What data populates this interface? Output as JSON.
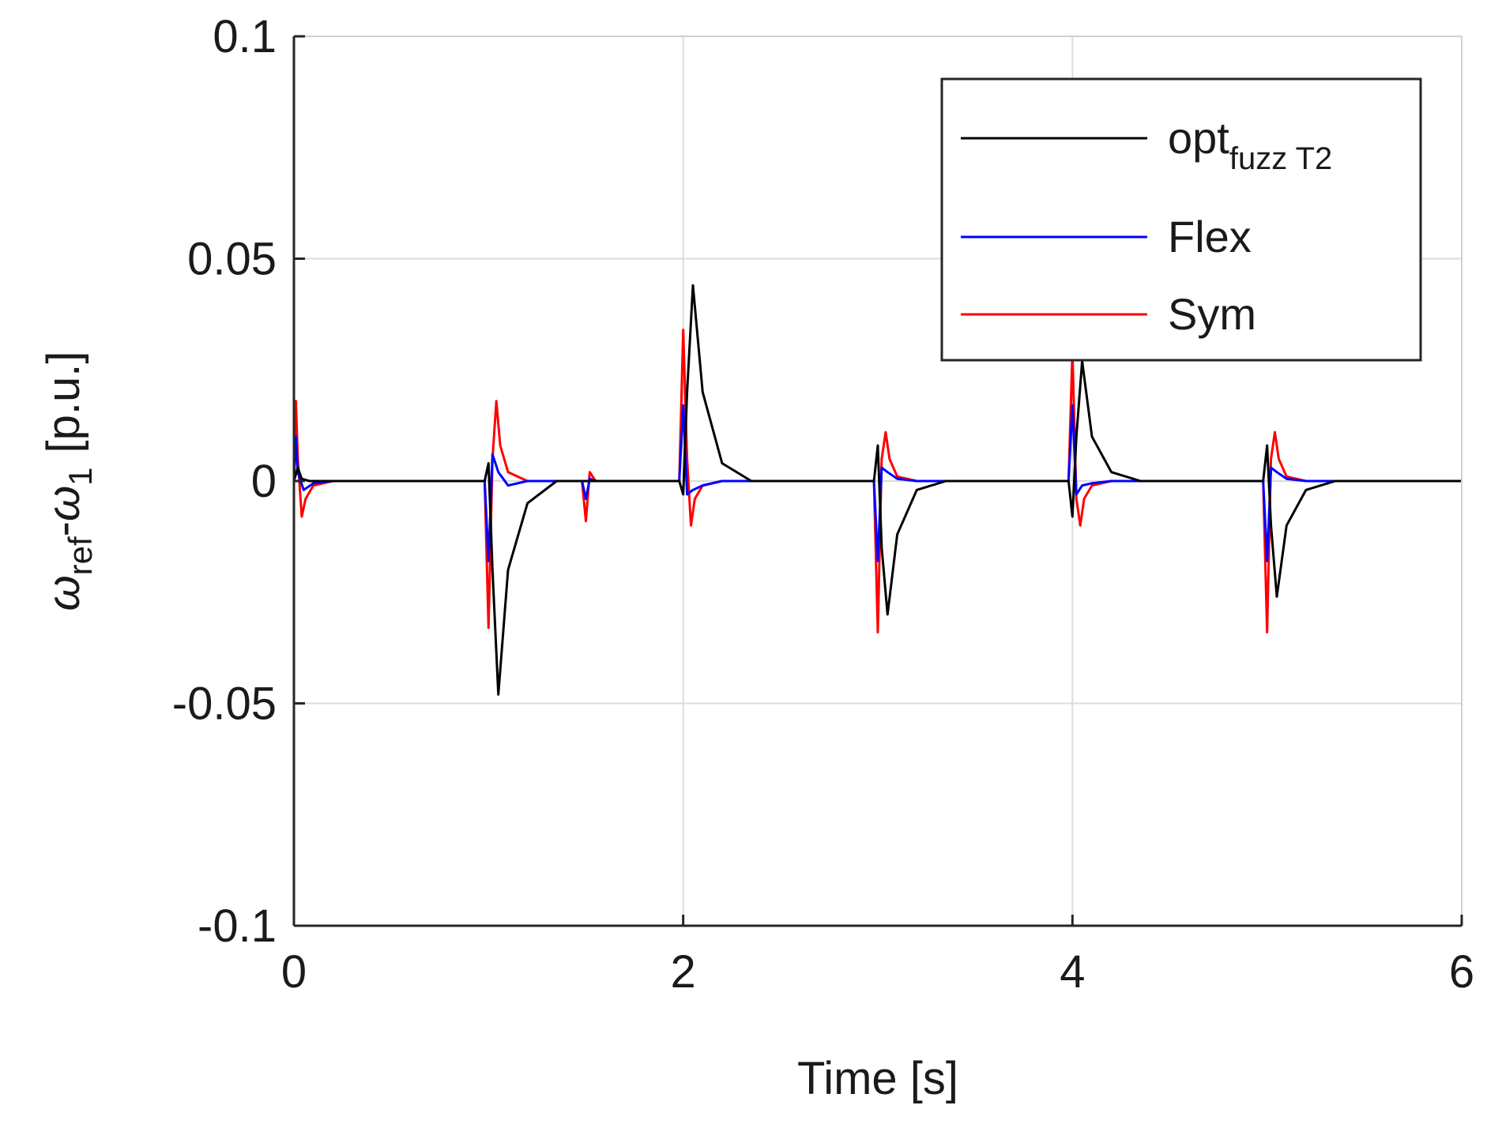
{
  "chart_data": {
    "type": "line",
    "title": "",
    "xlabel": "Time [s]",
    "ylabel": {
      "omega": "ω",
      "ref_sub": "ref",
      "minus": "-",
      "one_sub": "1",
      "unit": "[p.u.]"
    },
    "xlim": [
      0,
      6
    ],
    "ylim": [
      -0.1,
      0.1
    ],
    "grid": true,
    "legend_position": "top-right",
    "x_ticks": [
      0,
      2,
      4,
      6
    ],
    "x_tick_labels": [
      "0",
      "2",
      "4",
      "6"
    ],
    "y_ticks": [
      -0.1,
      -0.05,
      0,
      0.05,
      0.1
    ],
    "y_tick_labels": [
      "-0.1",
      "-0.05",
      "0",
      "0.05",
      "0.1"
    ],
    "series": [
      {
        "name": "opt",
        "name_sub": "fuzz T2",
        "color": "#000000",
        "x": [
          0,
          0.02,
          0.04,
          0.08,
          0.12,
          0.98,
          1.0,
          1.02,
          1.05,
          1.1,
          1.2,
          1.35,
          1.5,
          1.98,
          2.0,
          2.02,
          2.05,
          2.1,
          2.2,
          2.35,
          2.98,
          3.0,
          3.02,
          3.05,
          3.1,
          3.2,
          3.35,
          3.98,
          4.0,
          4.02,
          4.05,
          4.1,
          4.2,
          4.35,
          4.98,
          5.0,
          5.02,
          5.05,
          5.1,
          5.2,
          5.35,
          6.0
        ],
        "values": [
          0,
          0.003,
          0.0005,
          0,
          0,
          0,
          0.004,
          -0.02,
          -0.048,
          -0.02,
          -0.005,
          0,
          0,
          0,
          -0.003,
          0.02,
          0.044,
          0.02,
          0.004,
          0,
          0,
          0.008,
          -0.015,
          -0.03,
          -0.012,
          -0.002,
          0,
          0,
          -0.008,
          0.01,
          0.027,
          0.01,
          0.002,
          0,
          0,
          0.008,
          -0.01,
          -0.026,
          -0.01,
          -0.002,
          0,
          0
        ]
      },
      {
        "name": "Flex",
        "name_sub": "",
        "color": "#0000ff",
        "x": [
          0,
          0.01,
          0.02,
          0.05,
          0.1,
          0.2,
          0.98,
          1.0,
          1.02,
          1.05,
          1.1,
          1.2,
          1.48,
          1.5,
          1.52,
          1.55,
          1.98,
          2.0,
          2.02,
          2.05,
          2.1,
          2.2,
          2.98,
          3.0,
          3.02,
          3.05,
          3.1,
          3.2,
          3.98,
          4.0,
          4.02,
          4.05,
          4.1,
          4.2,
          4.98,
          5.0,
          5.02,
          5.05,
          5.1,
          5.2,
          6.0
        ],
        "values": [
          0,
          0.01,
          0.002,
          -0.002,
          -0.0005,
          0,
          0,
          -0.018,
          0.006,
          0.002,
          -0.001,
          0,
          0,
          -0.004,
          0.0005,
          0,
          0,
          0.017,
          -0.003,
          -0.002,
          -0.001,
          0,
          0,
          -0.018,
          0.003,
          0.002,
          0.0005,
          0,
          0,
          0.017,
          -0.003,
          -0.001,
          -0.0005,
          0,
          0,
          -0.018,
          0.003,
          0.002,
          0.0005,
          0,
          0
        ]
      },
      {
        "name": "Sym",
        "name_sub": "",
        "color": "#ff0000",
        "x": [
          0,
          0.01,
          0.02,
          0.04,
          0.06,
          0.1,
          0.2,
          0.98,
          1.0,
          1.02,
          1.04,
          1.06,
          1.1,
          1.2,
          1.48,
          1.5,
          1.52,
          1.55,
          1.98,
          2.0,
          2.02,
          2.04,
          2.06,
          2.1,
          2.2,
          2.98,
          3.0,
          3.02,
          3.04,
          3.06,
          3.1,
          3.2,
          3.98,
          4.0,
          4.02,
          4.04,
          4.06,
          4.1,
          4.2,
          4.98,
          5.0,
          5.02,
          5.04,
          5.06,
          5.1,
          5.2,
          6.0
        ],
        "values": [
          0,
          0.018,
          0.005,
          -0.008,
          -0.004,
          -0.001,
          0,
          0,
          -0.033,
          0.005,
          0.018,
          0.008,
          0.002,
          0,
          0,
          -0.009,
          0.002,
          0,
          0,
          0.034,
          0.005,
          -0.01,
          -0.004,
          -0.001,
          0,
          0,
          -0.034,
          0.005,
          0.011,
          0.005,
          0.001,
          0,
          0,
          0.029,
          -0.004,
          -0.01,
          -0.004,
          -0.001,
          0,
          0,
          -0.034,
          0.005,
          0.011,
          0.005,
          0.001,
          0,
          0
        ]
      }
    ]
  }
}
